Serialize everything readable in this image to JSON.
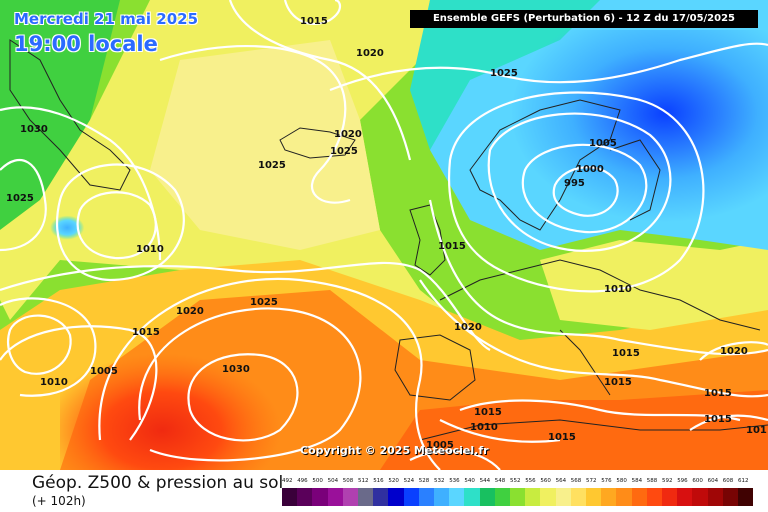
{
  "header": {
    "date": "Mercredi 21 mai 2025",
    "time": "19:00 locale",
    "run_info": "Ensemble GEFS  (Perturbation 6)  -  12 Z du 17/05/2025"
  },
  "copyright": "Copyright © 2025 Meteociel.fr",
  "footer": {
    "title": "Géop. Z500 & pression au sol",
    "lead": "(+ 102h)"
  },
  "scale": {
    "labels": [
      "492",
      "496",
      "500",
      "504",
      "508",
      "512",
      "516",
      "520",
      "524",
      "528",
      "532",
      "536",
      "540",
      "544",
      "548",
      "552",
      "556",
      "560",
      "564",
      "568",
      "572",
      "576",
      "580",
      "584",
      "588",
      "592",
      "596",
      "600",
      "604",
      "608",
      "612"
    ],
    "colors": [
      "#3a003a",
      "#5a005a",
      "#7a007a",
      "#9a109a",
      "#b040b0",
      "#6a6a8a",
      "#3030a0",
      "#0000cc",
      "#0a40ff",
      "#2a80ff",
      "#3fb0ff",
      "#5ad6ff",
      "#2ee0c8",
      "#18c060",
      "#40d040",
      "#8ae030",
      "#c8ec40",
      "#f0f060",
      "#f8f08c",
      "#ffe060",
      "#ffc830",
      "#ffa820",
      "#ff8c18",
      "#ff6a10",
      "#ff4a10",
      "#f02a10",
      "#d81010",
      "#c00a0a",
      "#a00606",
      "#780404",
      "#400202"
    ]
  },
  "isobar_labels": [
    "1015",
    "1020",
    "1025",
    "1020",
    "1025",
    "1025",
    "1005",
    "1000",
    "995",
    "1025",
    "1030",
    "1010",
    "1015",
    "1010",
    "1025",
    "1020",
    "1015",
    "1005",
    "1010",
    "1030",
    "1020",
    "1015",
    "1015",
    "1015",
    "1020",
    "1015",
    "1015",
    "1010",
    "1005",
    "1015",
    "101"
  ],
  "colors": {
    "accent": "#2b6bff",
    "isobar": "#ffffff",
    "run_box_bg": "#000000"
  }
}
